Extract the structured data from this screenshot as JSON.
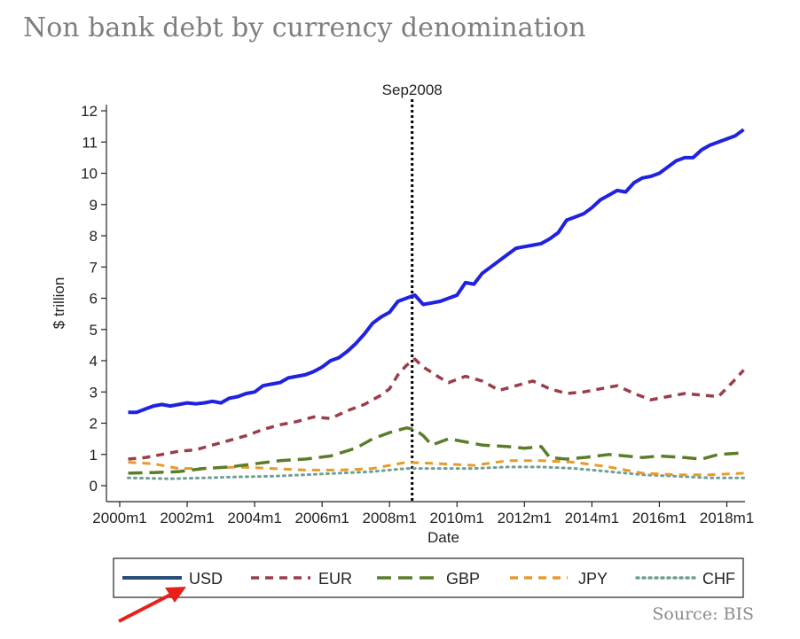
{
  "title": "Non bank debt by currency denomination",
  "source": "Source: BIS",
  "chart_data": {
    "type": "line",
    "xlabel": "Date",
    "ylabel": "$ trillion",
    "xlim": [
      2000.0,
      2018.75
    ],
    "ylim": [
      0,
      12
    ],
    "yticks": [
      0,
      1,
      2,
      3,
      4,
      5,
      6,
      7,
      8,
      9,
      10,
      11,
      12
    ],
    "xticks": [
      {
        "value": 2000,
        "label": "2000m1"
      },
      {
        "value": 2002,
        "label": "2002m1"
      },
      {
        "value": 2004,
        "label": "2004m1"
      },
      {
        "value": 2006,
        "label": "2006m1"
      },
      {
        "value": 2008,
        "label": "2008m1"
      },
      {
        "value": 2010,
        "label": "2010m1"
      },
      {
        "value": 2012,
        "label": "2012m1"
      },
      {
        "value": 2014,
        "label": "2014m1"
      },
      {
        "value": 2016,
        "label": "2016m1"
      },
      {
        "value": 2018,
        "label": "2018m1"
      }
    ],
    "grid": false,
    "legend_position": "bottom",
    "annotations": [
      {
        "x": 2008.67,
        "label": "Sep2008",
        "style": "dotted vertical line"
      }
    ],
    "series": [
      {
        "name": "USD",
        "color": "#1f22e0",
        "style": "solid",
        "x": [
          2000.25,
          2000.5,
          2000.75,
          2001.0,
          2001.25,
          2001.5,
          2001.75,
          2002.0,
          2002.25,
          2002.5,
          2002.75,
          2003.0,
          2003.25,
          2003.5,
          2003.75,
          2004.0,
          2004.25,
          2004.5,
          2004.75,
          2005.0,
          2005.25,
          2005.5,
          2005.75,
          2006.0,
          2006.25,
          2006.5,
          2006.75,
          2007.0,
          2007.25,
          2007.5,
          2007.75,
          2008.0,
          2008.25,
          2008.5,
          2008.75,
          2009.0,
          2009.25,
          2009.5,
          2009.75,
          2010.0,
          2010.25,
          2010.5,
          2010.75,
          2011.0,
          2011.25,
          2011.5,
          2011.75,
          2012.0,
          2012.25,
          2012.5,
          2012.75,
          2013.0,
          2013.25,
          2013.5,
          2013.75,
          2014.0,
          2014.25,
          2014.5,
          2014.75,
          2015.0,
          2015.25,
          2015.5,
          2015.75,
          2016.0,
          2016.25,
          2016.5,
          2016.75,
          2017.0,
          2017.25,
          2017.5,
          2017.75,
          2018.0,
          2018.25,
          2018.5
        ],
        "values": [
          2.35,
          2.35,
          2.45,
          2.55,
          2.6,
          2.55,
          2.6,
          2.65,
          2.62,
          2.65,
          2.7,
          2.65,
          2.8,
          2.85,
          2.95,
          3.0,
          3.2,
          3.25,
          3.3,
          3.45,
          3.5,
          3.55,
          3.65,
          3.8,
          4.0,
          4.1,
          4.3,
          4.55,
          4.85,
          5.2,
          5.4,
          5.55,
          5.9,
          6.0,
          6.1,
          5.8,
          5.85,
          5.9,
          6.0,
          6.1,
          6.5,
          6.45,
          6.8,
          7.0,
          7.2,
          7.4,
          7.6,
          7.65,
          7.7,
          7.75,
          7.9,
          8.1,
          8.5,
          8.6,
          8.7,
          8.9,
          9.15,
          9.3,
          9.45,
          9.4,
          9.7,
          9.85,
          9.9,
          10.0,
          10.2,
          10.4,
          10.5,
          10.5,
          10.75,
          10.9,
          11.0,
          11.1,
          11.2,
          11.4
        ]
      },
      {
        "name": "EUR",
        "color": "#9b3d4a",
        "style": "dashed",
        "x": [
          2000.25,
          2000.75,
          2001.25,
          2001.75,
          2002.25,
          2002.75,
          2003.25,
          2003.75,
          2004.25,
          2004.75,
          2005.25,
          2005.75,
          2006.25,
          2006.75,
          2007.25,
          2007.75,
          2008.0,
          2008.25,
          2008.5,
          2008.75,
          2009.0,
          2009.5,
          2009.75,
          2010.25,
          2010.75,
          2011.25,
          2011.75,
          2012.25,
          2012.75,
          2013.25,
          2013.75,
          2014.25,
          2014.75,
          2015.25,
          2015.75,
          2016.25,
          2016.75,
          2017.25,
          2017.75,
          2018.25,
          2018.5
        ],
        "values": [
          0.85,
          0.9,
          1.0,
          1.1,
          1.15,
          1.3,
          1.45,
          1.6,
          1.8,
          1.95,
          2.05,
          2.2,
          2.15,
          2.4,
          2.6,
          2.9,
          3.1,
          3.55,
          3.85,
          4.05,
          3.8,
          3.45,
          3.3,
          3.5,
          3.35,
          3.05,
          3.2,
          3.35,
          3.1,
          2.95,
          3.0,
          3.1,
          3.2,
          2.95,
          2.75,
          2.85,
          2.95,
          2.9,
          2.85,
          3.4,
          3.7
        ]
      },
      {
        "name": "GBP",
        "color": "#5a7d2a",
        "style": "longdash",
        "x": [
          2000.25,
          2001.0,
          2001.75,
          2002.5,
          2003.25,
          2004.0,
          2004.75,
          2005.5,
          2006.25,
          2007.0,
          2007.5,
          2008.0,
          2008.5,
          2008.75,
          2009.0,
          2009.25,
          2009.75,
          2010.25,
          2010.75,
          2011.5,
          2012.0,
          2012.5,
          2012.75,
          2013.25,
          2013.75,
          2014.5,
          2015.0,
          2015.5,
          2016.0,
          2016.75,
          2017.25,
          2017.75,
          2018.5
        ],
        "values": [
          0.4,
          0.42,
          0.45,
          0.55,
          0.6,
          0.7,
          0.8,
          0.85,
          0.95,
          1.2,
          1.5,
          1.7,
          1.85,
          1.8,
          1.6,
          1.3,
          1.5,
          1.4,
          1.3,
          1.25,
          1.2,
          1.25,
          0.9,
          0.85,
          0.9,
          1.0,
          0.95,
          0.9,
          0.95,
          0.9,
          0.85,
          1.0,
          1.05
        ]
      },
      {
        "name": "JPY",
        "color": "#e89a2a",
        "style": "dashed",
        "x": [
          2000.25,
          2001.0,
          2001.75,
          2002.5,
          2003.5,
          2004.5,
          2005.5,
          2006.5,
          2007.5,
          2008.5,
          2009.5,
          2010.5,
          2011.5,
          2012.5,
          2013.5,
          2014.5,
          2015.5,
          2016.5,
          2017.5,
          2018.5
        ],
        "values": [
          0.75,
          0.7,
          0.55,
          0.55,
          0.6,
          0.55,
          0.5,
          0.5,
          0.55,
          0.75,
          0.7,
          0.65,
          0.8,
          0.8,
          0.75,
          0.6,
          0.4,
          0.35,
          0.35,
          0.4
        ]
      },
      {
        "name": "CHF",
        "color": "#6f9f95",
        "style": "dotted",
        "x": [
          2000.25,
          2001.5,
          2002.5,
          2003.5,
          2004.5,
          2005.5,
          2006.5,
          2007.5,
          2008.5,
          2009.5,
          2010.5,
          2011.5,
          2012.5,
          2013.5,
          2014.5,
          2015.5,
          2016.5,
          2017.5,
          2018.5
        ],
        "values": [
          0.25,
          0.22,
          0.25,
          0.28,
          0.3,
          0.35,
          0.4,
          0.45,
          0.55,
          0.55,
          0.55,
          0.6,
          0.6,
          0.55,
          0.45,
          0.35,
          0.3,
          0.25,
          0.25
        ]
      }
    ]
  }
}
